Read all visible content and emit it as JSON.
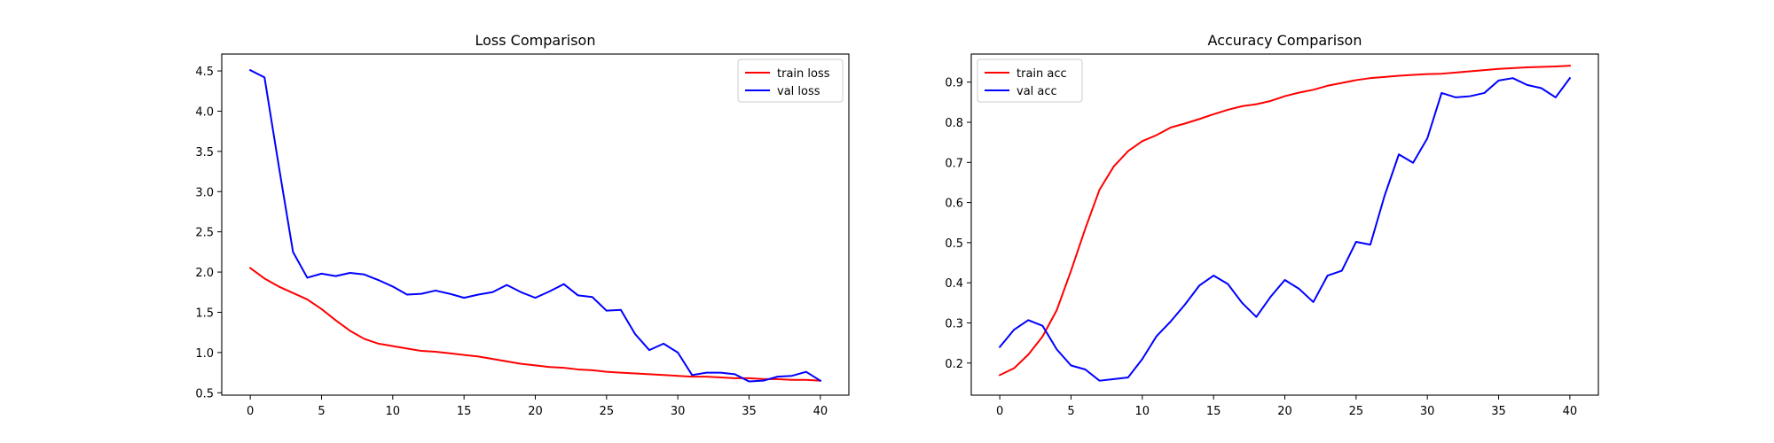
{
  "chart_data": [
    {
      "type": "line",
      "title": "Loss Comparison",
      "xlabel": "",
      "ylabel": "",
      "xlim": [
        -2,
        42
      ],
      "ylim": [
        0.47,
        4.71
      ],
      "xticks": [
        0,
        5,
        10,
        15,
        20,
        25,
        30,
        35,
        40
      ],
      "yticks": [
        0.5,
        1.0,
        1.5,
        2.0,
        2.5,
        3.0,
        3.5,
        4.0,
        4.5
      ],
      "ytick_format": 1,
      "grid": false,
      "legend_position": "top-right",
      "x": [
        0,
        1,
        2,
        3,
        4,
        5,
        6,
        7,
        8,
        9,
        10,
        11,
        12,
        13,
        14,
        15,
        16,
        17,
        18,
        19,
        20,
        21,
        22,
        23,
        24,
        25,
        26,
        27,
        28,
        29,
        30,
        31,
        32,
        33,
        34,
        35,
        36,
        37,
        38,
        39,
        40
      ],
      "series": [
        {
          "name": "train loss",
          "color": "#ff0000",
          "values": [
            2.05,
            1.92,
            1.82,
            1.74,
            1.66,
            1.54,
            1.4,
            1.27,
            1.17,
            1.11,
            1.08,
            1.05,
            1.02,
            1.01,
            0.99,
            0.97,
            0.95,
            0.92,
            0.89,
            0.86,
            0.84,
            0.82,
            0.81,
            0.79,
            0.78,
            0.76,
            0.75,
            0.74,
            0.73,
            0.72,
            0.71,
            0.7,
            0.7,
            0.69,
            0.68,
            0.68,
            0.67,
            0.67,
            0.66,
            0.66,
            0.65
          ]
        },
        {
          "name": "val loss",
          "color": "#0000ff",
          "values": [
            4.51,
            4.42,
            3.32,
            2.25,
            1.93,
            1.98,
            1.95,
            1.99,
            1.97,
            1.9,
            1.82,
            1.72,
            1.73,
            1.77,
            1.73,
            1.68,
            1.72,
            1.75,
            1.84,
            1.75,
            1.68,
            1.76,
            1.85,
            1.71,
            1.69,
            1.52,
            1.53,
            1.23,
            1.03,
            1.11,
            1.0,
            0.72,
            0.75,
            0.75,
            0.73,
            0.64,
            0.65,
            0.7,
            0.71,
            0.76,
            0.65
          ]
        }
      ]
    },
    {
      "type": "line",
      "title": "Accuracy Comparison",
      "xlabel": "",
      "ylabel": "",
      "xlim": [
        -2,
        42
      ],
      "ylim": [
        0.12,
        0.97
      ],
      "xticks": [
        0,
        5,
        10,
        15,
        20,
        25,
        30,
        35,
        40
      ],
      "yticks": [
        0.2,
        0.3,
        0.4,
        0.5,
        0.6,
        0.7,
        0.8,
        0.9
      ],
      "ytick_format": 1,
      "grid": false,
      "legend_position": "top-left",
      "x": [
        0,
        1,
        2,
        3,
        4,
        5,
        6,
        7,
        8,
        9,
        10,
        11,
        12,
        13,
        14,
        15,
        16,
        17,
        18,
        19,
        20,
        21,
        22,
        23,
        24,
        25,
        26,
        27,
        28,
        29,
        30,
        31,
        32,
        33,
        34,
        35,
        36,
        37,
        38,
        39,
        40
      ],
      "series": [
        {
          "name": "train acc",
          "color": "#ff0000",
          "values": [
            0.17,
            0.187,
            0.221,
            0.266,
            0.332,
            0.43,
            0.535,
            0.632,
            0.69,
            0.728,
            0.753,
            0.768,
            0.787,
            0.797,
            0.808,
            0.82,
            0.831,
            0.84,
            0.845,
            0.853,
            0.865,
            0.874,
            0.881,
            0.891,
            0.898,
            0.905,
            0.91,
            0.913,
            0.916,
            0.918,
            0.92,
            0.921,
            0.924,
            0.927,
            0.93,
            0.933,
            0.935,
            0.937,
            0.938,
            0.939,
            0.941
          ]
        },
        {
          "name": "val acc",
          "color": "#0000ff",
          "values": [
            0.24,
            0.283,
            0.307,
            0.293,
            0.234,
            0.194,
            0.184,
            0.156,
            0.16,
            0.164,
            0.21,
            0.267,
            0.304,
            0.346,
            0.393,
            0.418,
            0.397,
            0.35,
            0.315,
            0.365,
            0.407,
            0.385,
            0.352,
            0.418,
            0.43,
            0.502,
            0.495,
            0.617,
            0.72,
            0.699,
            0.76,
            0.873,
            0.862,
            0.865,
            0.873,
            0.904,
            0.91,
            0.893,
            0.885,
            0.862,
            0.91
          ]
        }
      ]
    }
  ]
}
